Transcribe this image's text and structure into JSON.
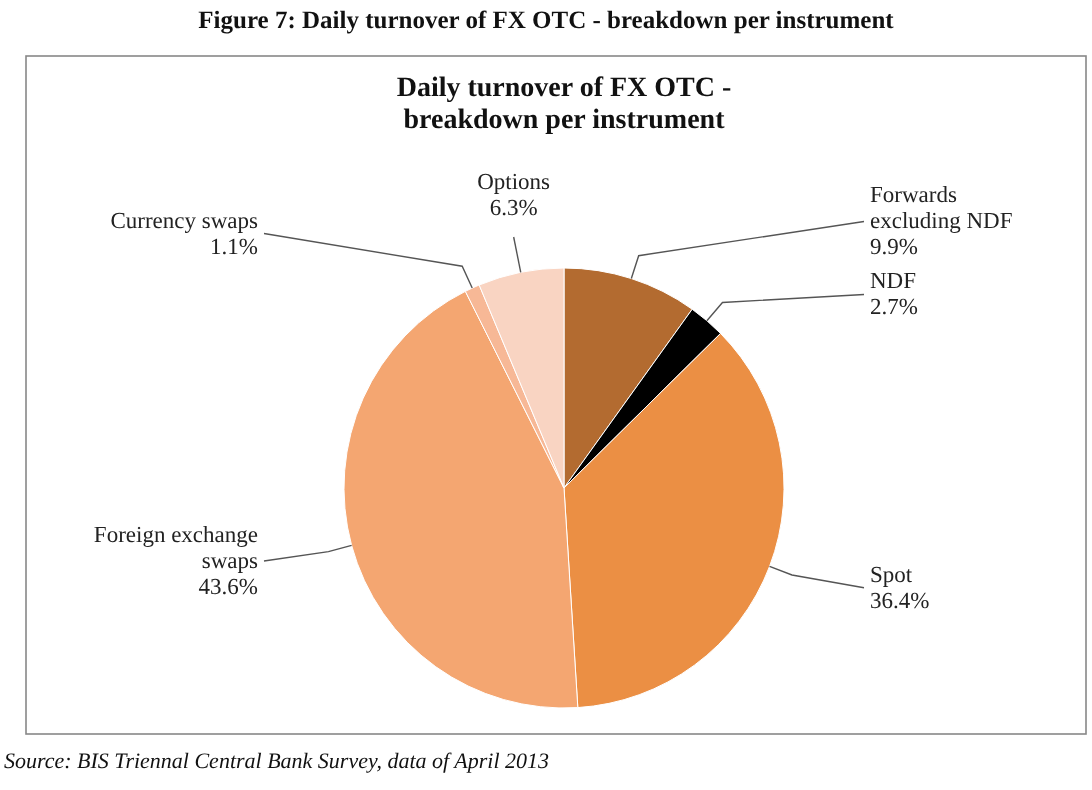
{
  "chart_data": {
    "type": "pie",
    "title": "Figure 7: Daily turnover of FX OTC - breakdown per instrument",
    "subtitle": "Daily  turnover of FX OTC - breakdown per instrument",
    "categories": [
      "Forwards excluding NDF",
      "NDF",
      "Spot",
      "Foreign exchange swaps",
      "Currency swaps",
      "Options"
    ],
    "values": [
      9.9,
      2.7,
      36.4,
      43.6,
      1.1,
      6.3
    ],
    "value_labels": [
      "9.9%",
      "2.7%",
      "36.4%",
      "43.6%",
      "1.1%",
      "6.3%"
    ],
    "colors": [
      "#b36b30",
      "#000000",
      "#eb8f44",
      "#f4a671",
      "#f7b896",
      "#f9d4c2"
    ],
    "annotations": [
      "Source: BIS Triennal Central Bank Survey, data of April 2013"
    ]
  }
}
